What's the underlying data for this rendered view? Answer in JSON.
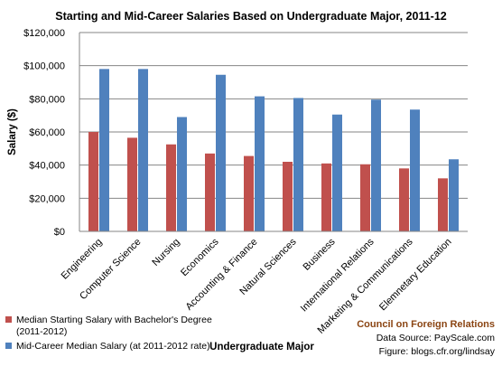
{
  "chart_data": {
    "type": "bar",
    "title": "Starting and Mid-Career Salaries Based on Undergraduate Major, 2011-12",
    "xlabel": "Undergraduate Major",
    "ylabel": "Salary ($)",
    "ylim": [
      0,
      120000
    ],
    "yticks": [
      "$0",
      "$20,000",
      "$40,000",
      "$60,000",
      "$80,000",
      "$100,000",
      "$120,000"
    ],
    "grid": true,
    "legend_position": "bottom-left",
    "categories": [
      "Engineering",
      "Computer Science",
      "Nursing",
      "Economics",
      "Accounting & Finance",
      "Natural Sciences",
      "Business",
      "International Relations",
      "Marketing & Communications",
      "Elemnetary Education"
    ],
    "series": [
      {
        "name": "Median Starting Salary with Bachelor's Degree (2011-2012)",
        "color": "#c0504d",
        "values": [
          60000,
          56500,
          52500,
          47000,
          45500,
          42000,
          41000,
          40500,
          38000,
          32000
        ]
      },
      {
        "name": "Mid-Career Median Salary (at 2011-2012 rate)",
        "color": "#4f81bd",
        "values": [
          98000,
          98000,
          69000,
          94500,
          81500,
          80500,
          70500,
          79500,
          73500,
          43500
        ]
      }
    ]
  },
  "source": {
    "org": "Council on Foreign Relations",
    "line1": "Data Source: PayScale.com",
    "line2": "Figure: blogs.cfr.org/lindsay"
  }
}
